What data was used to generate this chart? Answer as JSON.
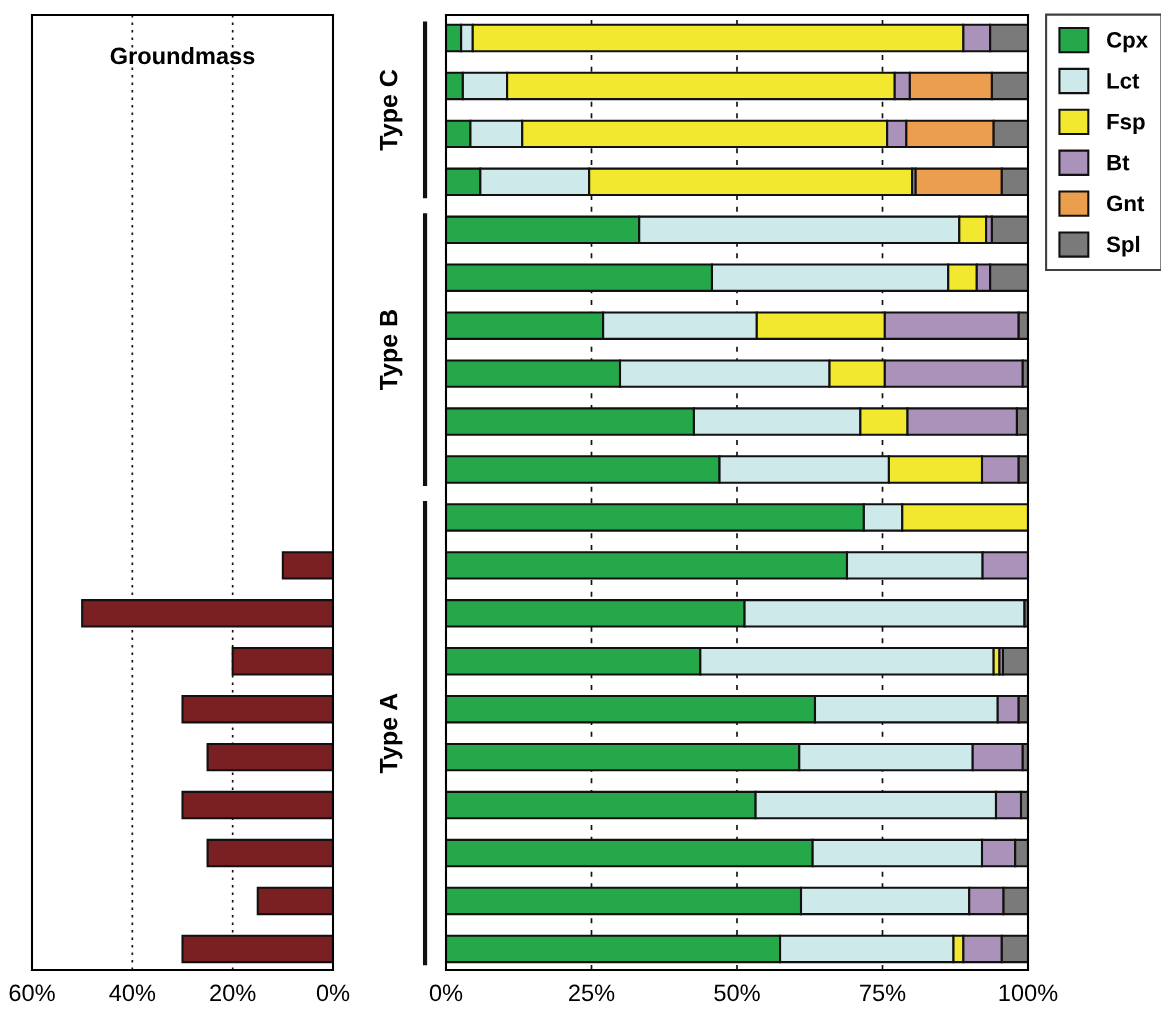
{
  "chart_data": [
    {
      "type": "bar",
      "orientation": "horizontal",
      "title": "Groundmass",
      "color": "#7a1f22",
      "grid": "x",
      "tick_labels": "x",
      "categories": [
        null,
        null,
        null,
        null,
        null,
        null,
        null,
        null,
        null,
        null,
        null,
        null,
        null,
        null,
        null,
        null,
        null,
        null,
        null,
        null
      ],
      "values": [
        null,
        null,
        null,
        null,
        null,
        null,
        null,
        null,
        null,
        null,
        null,
        10,
        50,
        20,
        30,
        25,
        30,
        25,
        15,
        30
      ],
      "xlim": [
        60,
        0
      ],
      "xticks": [
        {
          "value": 60,
          "label": "60%"
        },
        {
          "value": 40,
          "label": "40%"
        },
        {
          "value": 20,
          "label": "20%"
        },
        {
          "value": 0,
          "label": "0%"
        }
      ]
    },
    {
      "type": "bar",
      "orientation": "horizontal",
      "stacked": true,
      "grid": "x",
      "tick_labels": "x",
      "legend": "top right",
      "annotations": [
        "Type C",
        "Type B",
        "Type A"
      ],
      "categories": [
        null,
        null,
        null,
        null,
        null,
        null,
        null,
        null,
        null,
        null,
        null,
        null,
        null,
        null,
        null,
        null,
        null,
        null,
        null,
        null
      ],
      "xlim": [
        0,
        100
      ],
      "xticks": [
        {
          "value": 0,
          "label": "0%"
        },
        {
          "value": 25,
          "label": "25%"
        },
        {
          "value": 50,
          "label": "50%"
        },
        {
          "value": 75,
          "label": "75%"
        },
        {
          "value": 100,
          "label": "100%"
        }
      ],
      "series": [
        {
          "name": "Cpx",
          "color": "#25a84a",
          "values": [
            2.6,
            2.9,
            4.2,
            5.9,
            33.2,
            45.7,
            27.0,
            29.9,
            42.6,
            47.0,
            71.8,
            68.9,
            51.3,
            43.7,
            63.4,
            60.7,
            53.2,
            63.0,
            61.0,
            57.4
          ]
        },
        {
          "name": "Lct",
          "color": "#cde9ea",
          "values": [
            2.0,
            7.6,
            8.9,
            18.7,
            55.0,
            40.6,
            26.4,
            36.0,
            28.6,
            29.1,
            6.6,
            23.3,
            48.1,
            50.4,
            31.4,
            29.8,
            41.3,
            29.1,
            28.9,
            29.8
          ]
        },
        {
          "name": "Fsp",
          "color": "#f2e830",
          "values": [
            84.3,
            66.6,
            62.7,
            55.5,
            4.6,
            4.9,
            22.0,
            9.5,
            8.1,
            16.0,
            21.6,
            null,
            null,
            1.0,
            null,
            null,
            null,
            null,
            null,
            1.7
          ]
        },
        {
          "name": "Bt",
          "color": "#ab92bb",
          "values": [
            4.6,
            2.6,
            3.3,
            0.6,
            1.0,
            2.3,
            23.0,
            23.7,
            18.8,
            6.3,
            null,
            7.8,
            null,
            0.6,
            3.6,
            8.6,
            4.3,
            5.7,
            5.9,
            6.6
          ]
        },
        {
          "name": "Gnt",
          "color": "#eb9e4d",
          "values": [
            null,
            14.1,
            15.0,
            14.8,
            null,
            null,
            null,
            null,
            null,
            null,
            null,
            null,
            null,
            null,
            null,
            null,
            null,
            null,
            null,
            null
          ]
        },
        {
          "name": "Spl",
          "color": "#7a7a7a",
          "values": [
            6.5,
            6.2,
            5.9,
            4.5,
            6.2,
            6.5,
            1.6,
            0.9,
            1.9,
            1.6,
            null,
            null,
            0.6,
            4.3,
            1.6,
            0.9,
            1.2,
            2.2,
            4.2,
            4.5
          ]
        }
      ]
    }
  ]
}
